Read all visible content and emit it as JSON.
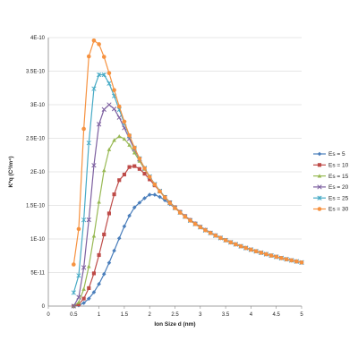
{
  "chart_data": {
    "type": "line",
    "title": "",
    "xlabel": "Ion Size d (nm)",
    "ylabel": "K*q (C²/m⁴)",
    "xlim": [
      0,
      5
    ],
    "ylim": [
      0,
      4e-10
    ],
    "x_ticks": [
      "0",
      "0.5",
      "1",
      "1.5",
      "2",
      "2.5",
      "3",
      "3.5",
      "4",
      "4.5",
      "5"
    ],
    "y_ticks": [
      "0",
      "5E-11",
      "1E-10",
      "1.5E-10",
      "2E-10",
      "2.5E-10",
      "3E-10",
      "3.5E-10",
      "4E-10"
    ],
    "grid": "horizontal",
    "legend_position": "right",
    "series": [
      {
        "name": "Es = 5",
        "color": "#4a7ebb",
        "marker": "diamond",
        "peak_x": 1.85,
        "peak_y": 1.55e-10,
        "start_x": 0.5,
        "start_y": 0
      },
      {
        "name": "Es = 10",
        "color": "#be4b48",
        "marker": "square",
        "peak_x": 1.5,
        "peak_y": 1.96e-10,
        "start_x": 0.5,
        "start_y": 0
      },
      {
        "name": "Es = 15",
        "color": "#98b954",
        "marker": "triangle",
        "peak_x": 1.25,
        "peak_y": 2.38e-10,
        "start_x": 0.5,
        "start_y": 0
      },
      {
        "name": "Es = 20",
        "color": "#7d60a0",
        "marker": "x",
        "peak_x": 1.05,
        "peak_y": 2.81e-10,
        "start_x": 0.5,
        "start_y": 0
      },
      {
        "name": "Es = 25",
        "color": "#46aac5",
        "marker": "star",
        "peak_x": 0.92,
        "peak_y": 3.27e-10,
        "start_x": 0.5,
        "start_y": 2e-11
      },
      {
        "name": "Es = 30",
        "color": "#f69240",
        "marker": "circle",
        "peak_x": 0.8,
        "peak_y": 3.72e-10,
        "start_x": 0.5,
        "start_y": 6.2e-11
      }
    ],
    "x_max": 5,
    "tail_y_at_5": 6.5e-11
  }
}
